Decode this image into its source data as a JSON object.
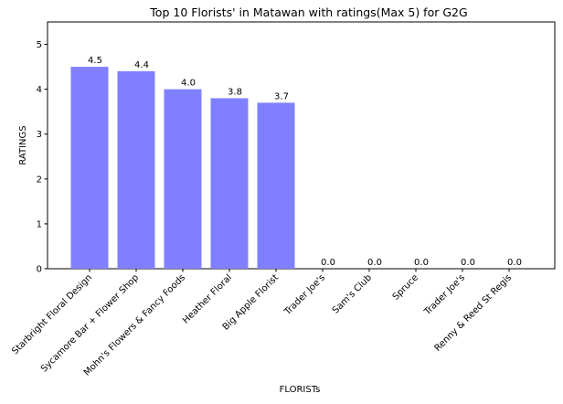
{
  "chart_data": {
    "type": "bar",
    "title": "Top 10 Florists' in Matawan with ratings(Max 5) for G2G",
    "xlabel": "FLORISTs",
    "ylabel": "RATINGS",
    "ylim": [
      0,
      5.5
    ],
    "yticks": [
      0,
      1,
      2,
      3,
      4,
      5
    ],
    "categories": [
      "Starbright Floral Design",
      "Sycamore Bar + Flower Shop",
      "Mohn's Flowers & Fancy Foods",
      "Heather Floral",
      "Big Apple Florist",
      "Trader Joe's",
      "Sam's Club",
      "Spruce",
      "Trader Joe's",
      "Renny & Reed St Regis"
    ],
    "values": [
      4.5,
      4.4,
      4.0,
      3.8,
      3.7,
      0.0,
      0.0,
      0.0,
      0.0,
      0.0
    ],
    "data_labels": [
      "4.5",
      "4.4",
      "4.0",
      "3.8",
      "3.7",
      "0.0",
      "0.0",
      "0.0",
      "0.0",
      "0.0"
    ],
    "bar_color": "#8080ff",
    "grid": false
  }
}
